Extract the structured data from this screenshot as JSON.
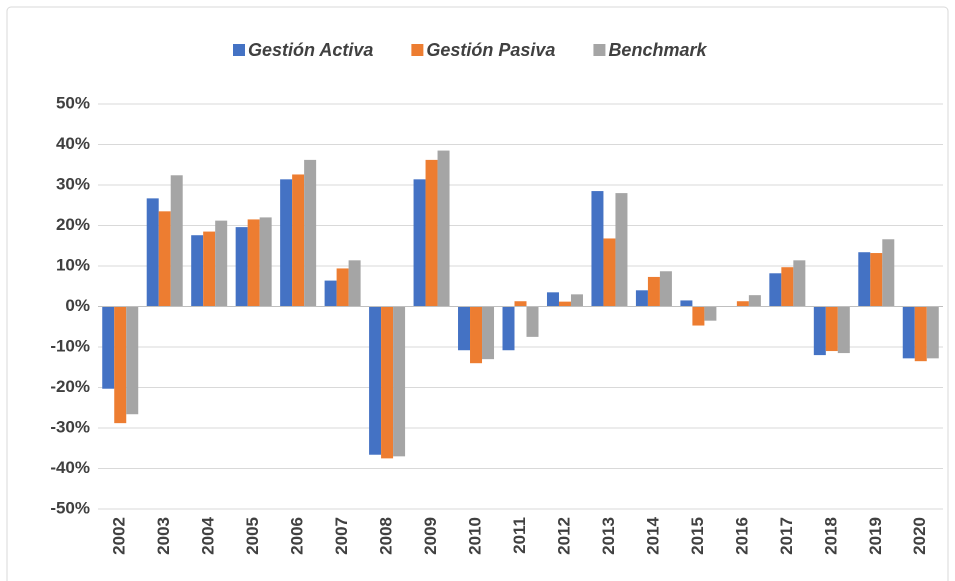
{
  "chart_data": {
    "type": "bar",
    "categories": [
      "2002",
      "2003",
      "2004",
      "2005",
      "2006",
      "2007",
      "2008",
      "2009",
      "2010",
      "2011",
      "2012",
      "2013",
      "2014",
      "2015",
      "2016",
      "2017",
      "2018",
      "2019",
      "2020"
    ],
    "series": [
      {
        "name": "Gestión Activa",
        "color": "#4472c4",
        "values": [
          -20.3,
          26.7,
          17.6,
          19.6,
          31.4,
          6.4,
          -36.6,
          31.4,
          -10.8,
          -10.8,
          3.5,
          28.5,
          4,
          1.5,
          0,
          8.2,
          -12,
          13.4,
          -12.8
        ]
      },
      {
        "name": "Gestión Pasiva",
        "color": "#ed7d31",
        "values": [
          -28.8,
          23.5,
          18.5,
          21.5,
          32.6,
          9.4,
          -37.5,
          36.2,
          -14,
          1.3,
          1.2,
          16.8,
          7.3,
          -4.7,
          1.3,
          9.7,
          -11,
          13.2,
          -13.5
        ]
      },
      {
        "name": "Benchmark",
        "color": "#a5a5a5",
        "values": [
          -26.6,
          32.4,
          21.2,
          22,
          36.2,
          11.4,
          -37,
          38.5,
          -13,
          -7.5,
          3,
          28,
          8.7,
          -3.5,
          2.8,
          11.4,
          -11.5,
          16.6,
          -12.8
        ]
      }
    ],
    "ylim": [
      -50,
      50
    ],
    "yticks": [
      {
        "value": -50,
        "label": "-50%"
      },
      {
        "value": -40,
        "label": "-40%"
      },
      {
        "value": -30,
        "label": "-30%"
      },
      {
        "value": -20,
        "label": "-20%"
      },
      {
        "value": -10,
        "label": "-10%"
      },
      {
        "value": 0,
        "label": "0%"
      },
      {
        "value": 10,
        "label": "10%"
      },
      {
        "value": 20,
        "label": "20%"
      },
      {
        "value": 30,
        "label": "30%"
      },
      {
        "value": 40,
        "label": "40%"
      },
      {
        "value": 50,
        "label": "50%"
      }
    ],
    "grid": true,
    "legend": "top"
  }
}
